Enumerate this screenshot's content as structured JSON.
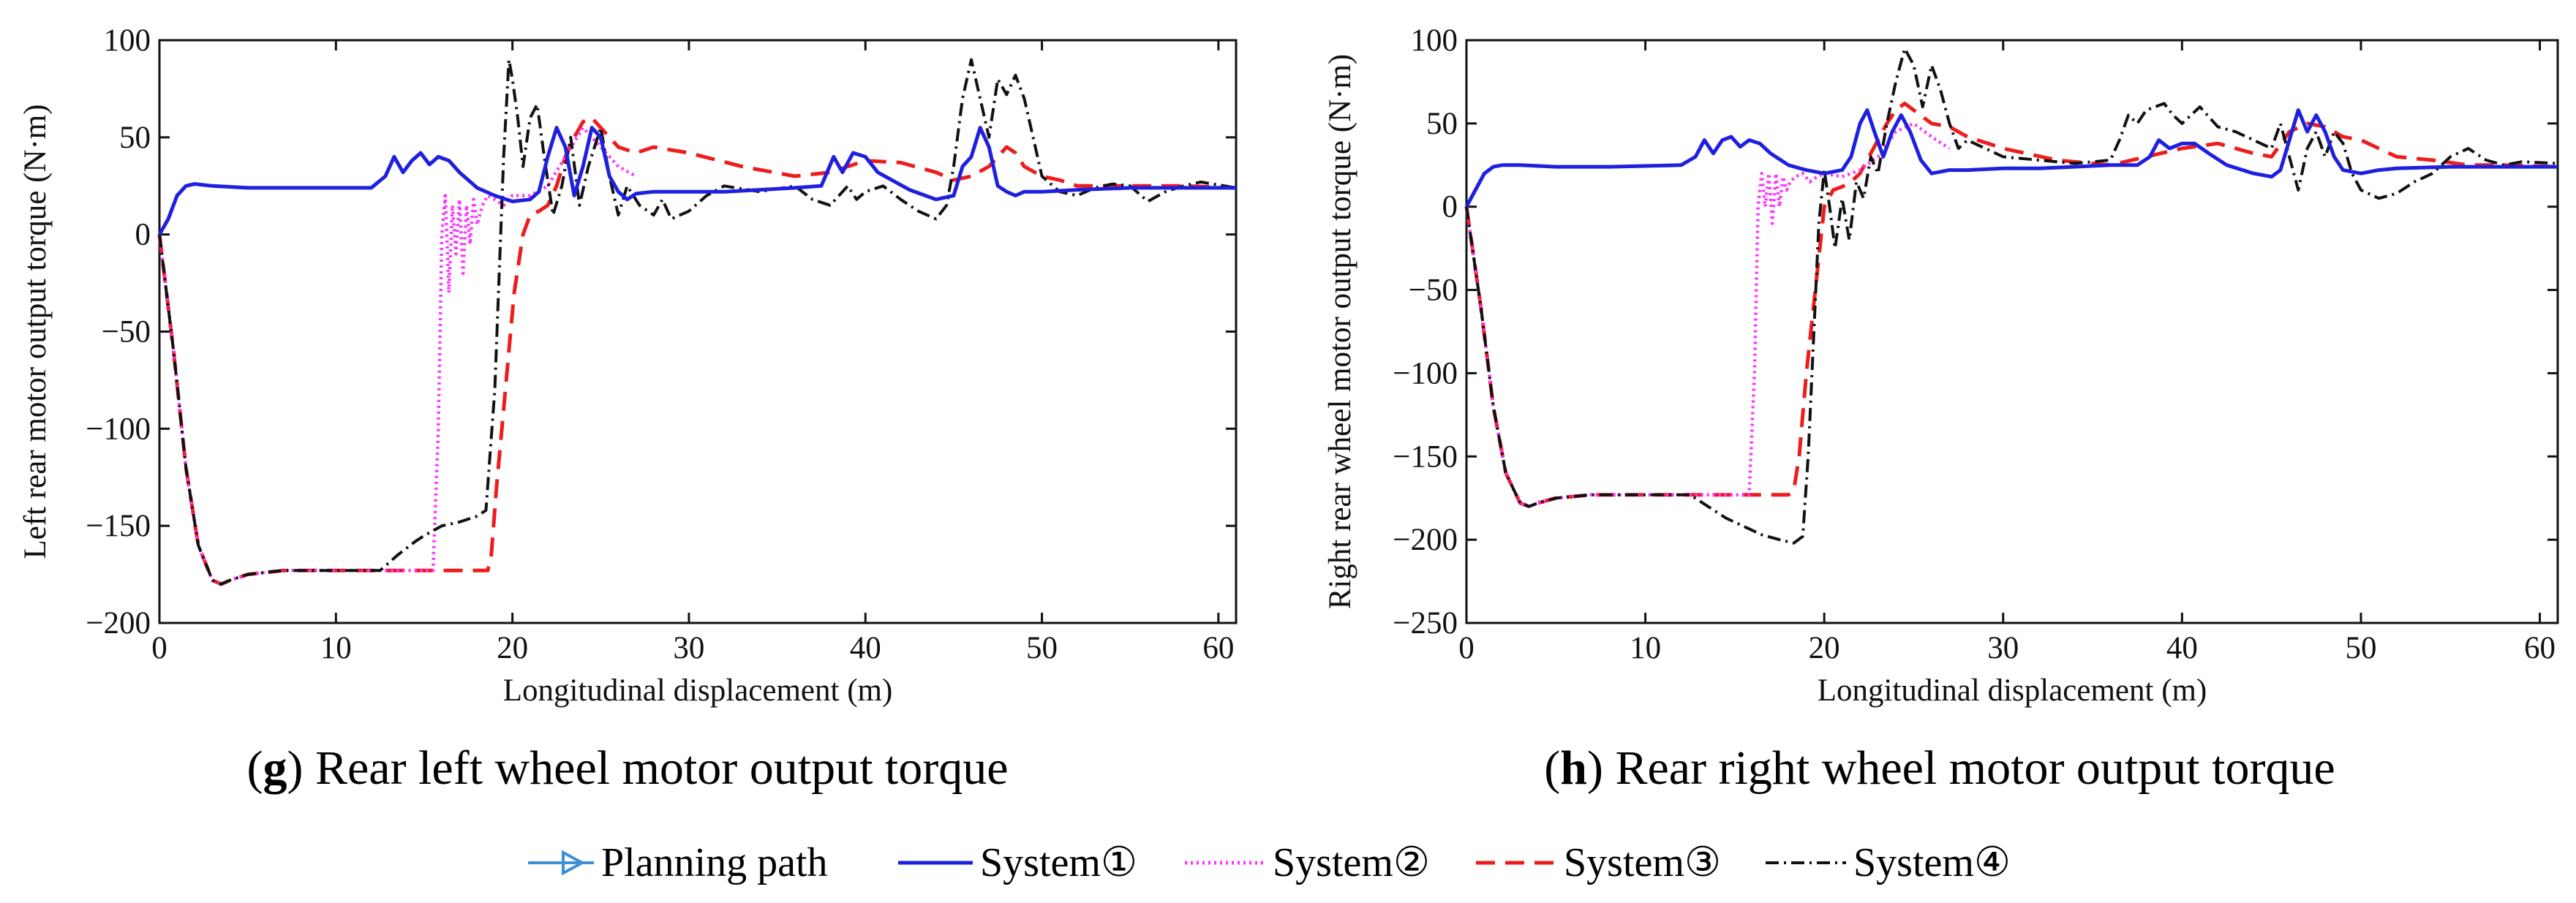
{
  "colors": {
    "planning": "#3d8fd6",
    "system1": "#1f1fe0",
    "system2": "#ff33ff",
    "system3": "#ee1c1c",
    "system4": "#111111"
  },
  "legend": {
    "planning": "Planning path",
    "system1": "System①",
    "system2": "System②",
    "system3": "System③",
    "system4": "System④"
  },
  "chart_data": [
    {
      "type": "line",
      "caption_letter": "g",
      "caption_text": " Rear left wheel motor output torque",
      "xlabel": "Longitudinal displacement (m)",
      "ylabel": "Left rear motor output torque (N·m)",
      "xlim": [
        0,
        61
      ],
      "ylim": [
        -200,
        100
      ],
      "xticks": [
        0,
        10,
        20,
        30,
        40,
        50,
        60
      ],
      "yticks": [
        -200,
        -150,
        -100,
        -50,
        0,
        50,
        100
      ],
      "series": [
        {
          "name": "System①",
          "key": "system1",
          "x": [
            0,
            0.5,
            1,
            1.5,
            2,
            3,
            5,
            8,
            12,
            12.8,
            13.3,
            13.8,
            14.3,
            14.8,
            15.3,
            15.8,
            16.4,
            17,
            18,
            19,
            20,
            21,
            21.5,
            22,
            22.5,
            23,
            23.5,
            24,
            24.5,
            25,
            25.5,
            26,
            26.5,
            27,
            28,
            30,
            32,
            34,
            36,
            37.5,
            38.2,
            38.7,
            39.3,
            40,
            40.7,
            41.5,
            42.5,
            44,
            45,
            45.5,
            46,
            46.5,
            47,
            47.5,
            48,
            48.5,
            49,
            50,
            52,
            55,
            58,
            61
          ],
          "y": [
            0,
            8,
            20,
            25,
            26,
            25,
            24,
            24,
            24,
            30,
            40,
            32,
            38,
            42,
            36,
            40,
            38,
            32,
            24,
            20,
            17,
            18,
            22,
            40,
            55,
            45,
            20,
            35,
            55,
            50,
            30,
            22,
            18,
            21,
            22,
            22,
            22,
            23,
            24,
            25,
            40,
            32,
            42,
            40,
            32,
            28,
            23,
            18,
            20,
            35,
            40,
            55,
            45,
            25,
            22,
            20,
            22,
            22,
            23,
            24,
            24,
            24
          ]
        },
        {
          "name": "System②",
          "key": "system2",
          "x": [
            0,
            0.8,
            1.5,
            2.2,
            3,
            3.5,
            4,
            5,
            7,
            10,
            13,
            15.5,
            15.8,
            16,
            16.2,
            16.4,
            16.6,
            16.8,
            17,
            17.2,
            17.4,
            17.6,
            17.8,
            18,
            18.3,
            18.6,
            19,
            19.5,
            20,
            21,
            22,
            23,
            24,
            25,
            26,
            27
          ],
          "y": [
            0,
            -60,
            -120,
            -160,
            -178,
            -180,
            -178,
            -175,
            -173,
            -173,
            -173,
            -173,
            -100,
            0,
            20,
            -30,
            15,
            -10,
            18,
            -20,
            15,
            -5,
            18,
            5,
            15,
            20,
            18,
            15,
            20,
            20,
            25,
            40,
            55,
            45,
            35,
            30
          ]
        },
        {
          "name": "System③",
          "key": "system3",
          "x": [
            0,
            0.8,
            1.5,
            2.2,
            3,
            3.5,
            4,
            5,
            7,
            10,
            13,
            15,
            17,
            18,
            18.6,
            18.8,
            19.1,
            19.6,
            20.1,
            20.6,
            21,
            21.5,
            22,
            22.5,
            23,
            23.5,
            24,
            24.5,
            25,
            26,
            27,
            28,
            30,
            33,
            36,
            38,
            40,
            42,
            44,
            45,
            46,
            47,
            48,
            48.5,
            49,
            50,
            51,
            52,
            54,
            56,
            58,
            61
          ],
          "y": [
            0,
            -60,
            -120,
            -160,
            -178,
            -180,
            -178,
            -175,
            -173,
            -173,
            -173,
            -173,
            -173,
            -173,
            -173,
            -165,
            -130,
            -80,
            -30,
            0,
            10,
            12,
            15,
            25,
            40,
            50,
            58,
            60,
            55,
            45,
            42,
            45,
            42,
            35,
            30,
            32,
            38,
            37,
            32,
            28,
            30,
            35,
            45,
            42,
            35,
            30,
            28,
            25,
            25,
            25,
            25,
            24
          ]
        },
        {
          "name": "System④",
          "key": "system4",
          "x": [
            0,
            0.8,
            1.5,
            2.2,
            3,
            3.5,
            4,
            5,
            7,
            10,
            12.5,
            13.5,
            14.5,
            15,
            16,
            17,
            18,
            18.5,
            19,
            19.5,
            19.8,
            20,
            20.3,
            20.6,
            21,
            21.4,
            21.8,
            22.3,
            22.8,
            23.3,
            23.8,
            24.3,
            25,
            25.5,
            26,
            26.5,
            27.2,
            28,
            28.5,
            29,
            30,
            31,
            32,
            34,
            36,
            37,
            38,
            39,
            39.5,
            40,
            41,
            42,
            43,
            44,
            44.6,
            45,
            45.5,
            46,
            46.5,
            47,
            47.5,
            48,
            48.5,
            49,
            49.5,
            50,
            51,
            52,
            53,
            54,
            55,
            56,
            57,
            58,
            59,
            61
          ],
          "y": [
            0,
            -60,
            -120,
            -160,
            -178,
            -180,
            -178,
            -175,
            -173,
            -173,
            -173,
            -165,
            -158,
            -155,
            -150,
            -148,
            -145,
            -142,
            -80,
            40,
            90,
            80,
            60,
            35,
            60,
            67,
            40,
            10,
            25,
            50,
            15,
            35,
            55,
            30,
            10,
            25,
            15,
            10,
            18,
            8,
            12,
            20,
            25,
            22,
            25,
            18,
            15,
            25,
            18,
            22,
            25,
            18,
            12,
            8,
            15,
            35,
            70,
            90,
            70,
            50,
            80,
            72,
            82,
            70,
            50,
            30,
            22,
            20,
            24,
            26,
            25,
            17,
            22,
            25,
            27,
            24
          ]
        }
      ]
    },
    {
      "type": "line",
      "caption_letter": "h",
      "caption_text": " Rear right wheel motor output torque",
      "xlabel": "Longitudinal displacement (m)",
      "ylabel": "Right rear wheel motor output torque (N·m)",
      "xlim": [
        0,
        61
      ],
      "ylim": [
        -250,
        100
      ],
      "xticks": [
        0,
        10,
        20,
        30,
        40,
        50,
        60
      ],
      "yticks": [
        -250,
        -200,
        -150,
        -100,
        -50,
        0,
        50,
        100
      ],
      "series": [
        {
          "name": "System①",
          "key": "system1",
          "x": [
            0,
            0.5,
            1,
            1.5,
            2,
            3,
            5,
            8,
            12,
            12.8,
            13.3,
            13.8,
            14.3,
            14.8,
            15.3,
            15.8,
            16.4,
            17,
            18,
            19,
            20,
            21,
            21.5,
            22,
            22.4,
            22.8,
            23.3,
            23.8,
            24.3,
            24.8,
            25.4,
            26,
            27,
            28,
            30,
            32,
            34,
            36,
            37.5,
            38.2,
            38.7,
            39.3,
            40,
            40.7,
            41.5,
            42.5,
            44,
            45,
            45.5,
            46,
            46.5,
            47,
            47.5,
            48,
            48.5,
            49,
            50,
            51,
            52,
            55,
            58,
            61
          ],
          "y": [
            0,
            10,
            20,
            24,
            25,
            25,
            24,
            24,
            25,
            30,
            40,
            32,
            40,
            42,
            36,
            40,
            38,
            32,
            25,
            22,
            20,
            22,
            30,
            50,
            58,
            45,
            30,
            45,
            55,
            45,
            28,
            20,
            22,
            22,
            23,
            23,
            24,
            25,
            25,
            30,
            40,
            35,
            38,
            38,
            32,
            25,
            20,
            18,
            22,
            40,
            58,
            45,
            55,
            45,
            30,
            22,
            20,
            22,
            23,
            24,
            24,
            24
          ]
        },
        {
          "name": "System②",
          "key": "system2",
          "x": [
            0,
            0.8,
            1.5,
            2.2,
            3,
            3.5,
            4,
            5,
            7,
            10,
            13,
            15.8,
            16.1,
            16.3,
            16.5,
            16.7,
            16.9,
            17.1,
            17.3,
            17.5,
            17.7,
            17.9,
            18.1,
            18.4,
            18.8,
            19.2,
            19.6,
            20,
            21,
            22,
            23,
            24,
            25,
            26,
            27
          ],
          "y": [
            0,
            -60,
            -120,
            -160,
            -178,
            -180,
            -178,
            -175,
            -173,
            -173,
            -173,
            -173,
            -100,
            0,
            20,
            0,
            20,
            -10,
            20,
            0,
            18,
            10,
            15,
            18,
            20,
            15,
            18,
            20,
            18,
            22,
            30,
            45,
            50,
            42,
            35
          ]
        },
        {
          "name": "System③",
          "key": "system3",
          "x": [
            0,
            0.8,
            1.5,
            2.2,
            3,
            3.5,
            4,
            5,
            7,
            10,
            13,
            15,
            17,
            18,
            18.3,
            18.6,
            19,
            19.5,
            20,
            20.5,
            21,
            21.5,
            22,
            22.5,
            23,
            23.5,
            24,
            24.5,
            25,
            26,
            27,
            28,
            30,
            33,
            36,
            38,
            40,
            42,
            44,
            45,
            46,
            47,
            48,
            48.5,
            49,
            50,
            51,
            52,
            54,
            56,
            58,
            61
          ],
          "y": [
            0,
            -60,
            -120,
            -160,
            -178,
            -180,
            -178,
            -175,
            -173,
            -173,
            -173,
            -173,
            -173,
            -173,
            -170,
            -150,
            -100,
            -50,
            0,
            10,
            12,
            15,
            20,
            30,
            40,
            50,
            58,
            62,
            58,
            50,
            48,
            42,
            35,
            28,
            25,
            30,
            35,
            38,
            32,
            30,
            45,
            50,
            48,
            45,
            42,
            40,
            35,
            30,
            28,
            25,
            25,
            24
          ]
        },
        {
          "name": "System④",
          "key": "system4",
          "x": [
            0,
            0.8,
            1.5,
            2.2,
            3,
            3.5,
            4,
            5,
            7,
            10,
            12.5,
            13.5,
            14.5,
            15.5,
            16.5,
            17.5,
            18.3,
            18.8,
            19.1,
            19.4,
            19.7,
            20,
            20.3,
            20.6,
            21,
            21.4,
            21.8,
            22.2,
            22.6,
            23,
            23.5,
            24,
            24.5,
            25,
            25.5,
            26,
            26.5,
            27,
            27.5,
            28,
            29,
            30,
            32,
            34,
            36,
            36.5,
            37,
            37.5,
            38,
            38.5,
            39,
            39.5,
            40,
            40.5,
            41,
            42,
            43,
            44,
            45,
            45.5,
            46,
            46.5,
            47,
            47.5,
            48,
            48.5,
            49,
            49.5,
            50,
            51,
            52,
            53,
            54,
            55,
            56,
            57,
            58,
            59,
            61
          ],
          "y": [
            0,
            -60,
            -120,
            -160,
            -178,
            -180,
            -178,
            -175,
            -173,
            -173,
            -173,
            -180,
            -187,
            -192,
            -197,
            -200,
            -202,
            -198,
            -150,
            -80,
            -10,
            22,
            0,
            -25,
            5,
            -20,
            15,
            5,
            30,
            20,
            50,
            75,
            95,
            85,
            60,
            85,
            70,
            50,
            35,
            40,
            35,
            30,
            28,
            26,
            28,
            40,
            55,
            50,
            58,
            60,
            62,
            55,
            50,
            55,
            60,
            48,
            45,
            40,
            35,
            50,
            30,
            10,
            35,
            45,
            30,
            45,
            38,
            20,
            10,
            5,
            8,
            15,
            20,
            30,
            35,
            28,
            25,
            27,
            26
          ]
        }
      ]
    }
  ]
}
